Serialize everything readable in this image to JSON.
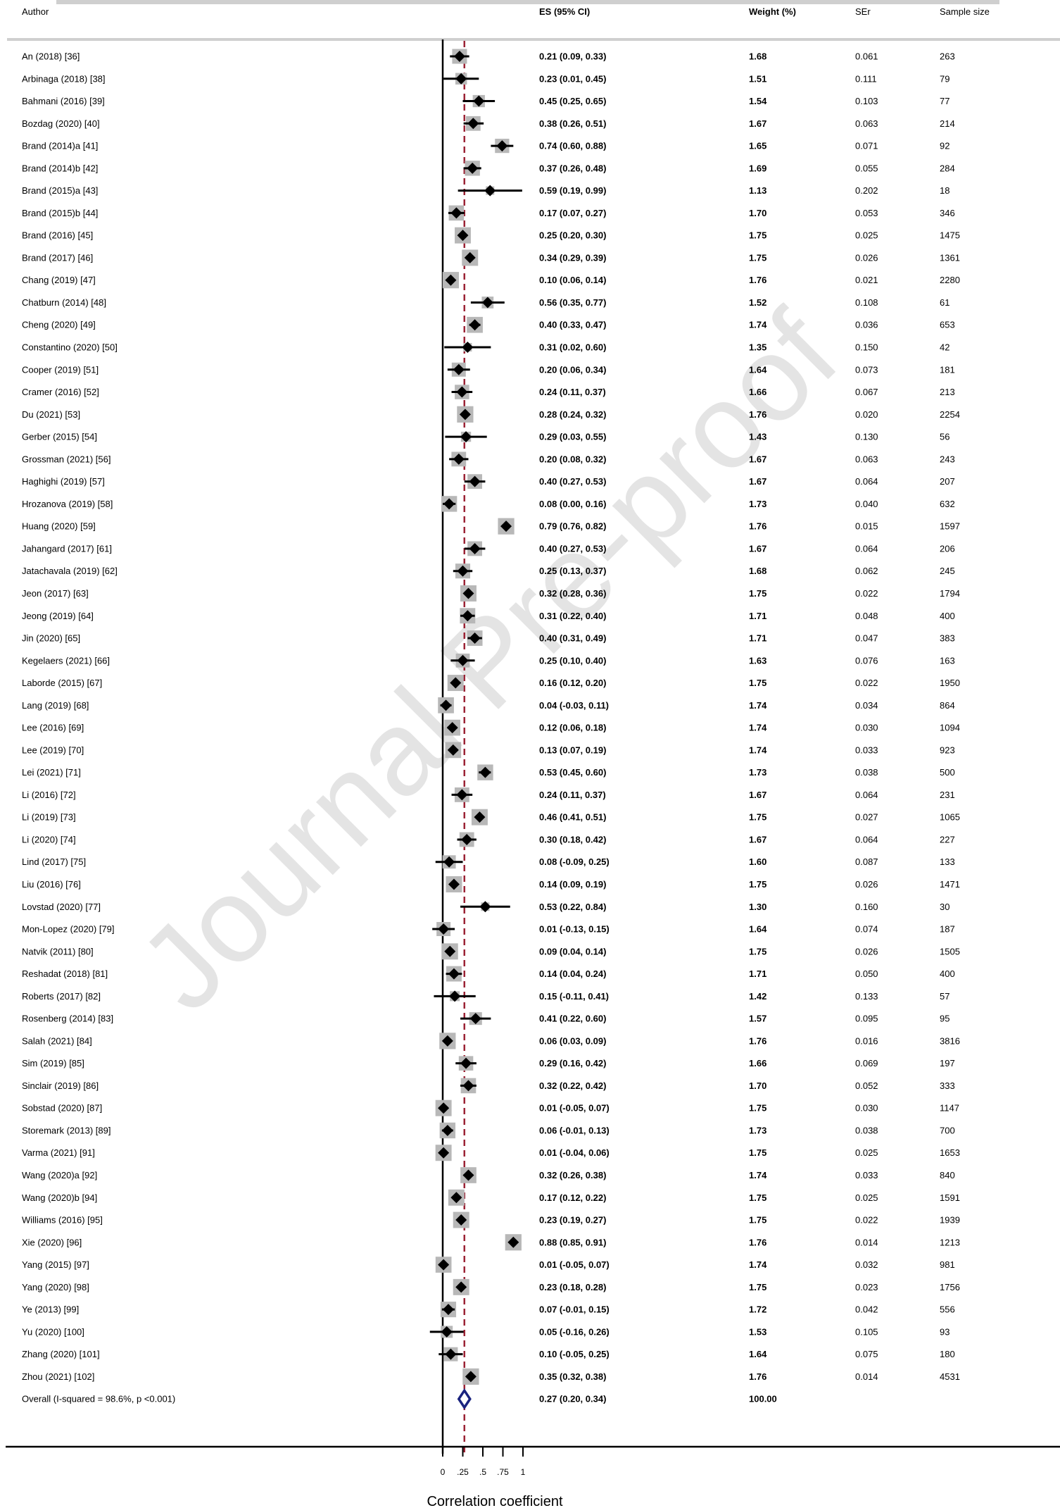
{
  "watermark": "Journal Pre-proof",
  "columns": {
    "author": "Author",
    "es": "ES (95% CI)",
    "weight": "Weight (%)",
    "ser": "SEr",
    "sample": "Sample size"
  },
  "colors": {
    "study_box": "#b8b8b8",
    "marker": "#000000",
    "overall_diamond": "#1a237e",
    "overall_line": "#9b2335",
    "null_line": "#000000"
  },
  "chart_data": {
    "type": "forest",
    "xlabel": "Correlation coefficient",
    "xlim": [
      0,
      1
    ],
    "xticks": [
      0,
      0.25,
      0.5,
      0.75,
      1
    ],
    "xtick_labels": [
      "0",
      ".25",
      ".5",
      ".75",
      "1"
    ],
    "overall_es": 0.27,
    "studies": [
      {
        "author": "An (2018) [36]",
        "es": 0.21,
        "lo": 0.09,
        "hi": 0.33,
        "es_ci": "0.21 (0.09, 0.33)",
        "weight": "1.68",
        "ser": "0.061",
        "n": "263"
      },
      {
        "author": "Arbinaga (2018) [38]",
        "es": 0.23,
        "lo": 0.01,
        "hi": 0.45,
        "es_ci": "0.23 (0.01, 0.45)",
        "weight": "1.51",
        "ser": "0.111",
        "n": "79"
      },
      {
        "author": "Bahmani (2016) [39]",
        "es": 0.45,
        "lo": 0.25,
        "hi": 0.65,
        "es_ci": "0.45 (0.25, 0.65)",
        "weight": "1.54",
        "ser": "0.103",
        "n": "77"
      },
      {
        "author": "Bozdag (2020) [40]",
        "es": 0.38,
        "lo": 0.26,
        "hi": 0.51,
        "es_ci": "0.38 (0.26, 0.51)",
        "weight": "1.67",
        "ser": "0.063",
        "n": "214"
      },
      {
        "author": "Brand (2014)a [41]",
        "es": 0.74,
        "lo": 0.6,
        "hi": 0.88,
        "es_ci": "0.74 (0.60, 0.88)",
        "weight": "1.65",
        "ser": "0.071",
        "n": "92"
      },
      {
        "author": "Brand (2014)b [42]",
        "es": 0.37,
        "lo": 0.26,
        "hi": 0.48,
        "es_ci": "0.37 (0.26, 0.48)",
        "weight": "1.69",
        "ser": "0.055",
        "n": "284"
      },
      {
        "author": "Brand (2015)a [43]",
        "es": 0.59,
        "lo": 0.19,
        "hi": 0.99,
        "es_ci": "0.59 (0.19, 0.99)",
        "weight": "1.13",
        "ser": "0.202",
        "n": "18"
      },
      {
        "author": "Brand (2015)b [44]",
        "es": 0.17,
        "lo": 0.07,
        "hi": 0.27,
        "es_ci": "0.17 (0.07, 0.27)",
        "weight": "1.70",
        "ser": "0.053",
        "n": "346"
      },
      {
        "author": "Brand (2016) [45]",
        "es": 0.25,
        "lo": 0.2,
        "hi": 0.3,
        "es_ci": "0.25 (0.20, 0.30)",
        "weight": "1.75",
        "ser": "0.025",
        "n": "1475"
      },
      {
        "author": "Brand (2017) [46]",
        "es": 0.34,
        "lo": 0.29,
        "hi": 0.39,
        "es_ci": "0.34 (0.29, 0.39)",
        "weight": "1.75",
        "ser": "0.026",
        "n": "1361"
      },
      {
        "author": "Chang (2019) [47]",
        "es": 0.1,
        "lo": 0.06,
        "hi": 0.14,
        "es_ci": "0.10 (0.06, 0.14)",
        "weight": "1.76",
        "ser": "0.021",
        "n": "2280"
      },
      {
        "author": "Chatburn (2014) [48]",
        "es": 0.56,
        "lo": 0.35,
        "hi": 0.77,
        "es_ci": "0.56 (0.35, 0.77)",
        "weight": "1.52",
        "ser": "0.108",
        "n": "61"
      },
      {
        "author": "Cheng (2020) [49]",
        "es": 0.4,
        "lo": 0.33,
        "hi": 0.47,
        "es_ci": "0.40 (0.33, 0.47)",
        "weight": "1.74",
        "ser": "0.036",
        "n": "653"
      },
      {
        "author": "Constantino (2020) [50]",
        "es": 0.31,
        "lo": 0.02,
        "hi": 0.6,
        "es_ci": "0.31 (0.02, 0.60)",
        "weight": "1.35",
        "ser": "0.150",
        "n": "42"
      },
      {
        "author": "Cooper (2019) [51]",
        "es": 0.2,
        "lo": 0.06,
        "hi": 0.34,
        "es_ci": "0.20 (0.06, 0.34)",
        "weight": "1.64",
        "ser": "0.073",
        "n": "181"
      },
      {
        "author": "Cramer (2016) [52]",
        "es": 0.24,
        "lo": 0.11,
        "hi": 0.37,
        "es_ci": "0.24 (0.11, 0.37)",
        "weight": "1.66",
        "ser": "0.067",
        "n": "213"
      },
      {
        "author": "Du (2021) [53]",
        "es": 0.28,
        "lo": 0.24,
        "hi": 0.32,
        "es_ci": "0.28 (0.24, 0.32)",
        "weight": "1.76",
        "ser": "0.020",
        "n": "2254"
      },
      {
        "author": "Gerber (2015) [54]",
        "es": 0.29,
        "lo": 0.03,
        "hi": 0.55,
        "es_ci": "0.29 (0.03, 0.55)",
        "weight": "1.43",
        "ser": "0.130",
        "n": "56"
      },
      {
        "author": "Grossman (2021) [56]",
        "es": 0.2,
        "lo": 0.08,
        "hi": 0.32,
        "es_ci": "0.20 (0.08, 0.32)",
        "weight": "1.67",
        "ser": "0.063",
        "n": "243"
      },
      {
        "author": "Haghighi (2019) [57]",
        "es": 0.4,
        "lo": 0.27,
        "hi": 0.53,
        "es_ci": "0.40 (0.27, 0.53)",
        "weight": "1.67",
        "ser": "0.064",
        "n": "207"
      },
      {
        "author": "Hrozanova (2019) [58]",
        "es": 0.08,
        "lo": 0.0,
        "hi": 0.16,
        "es_ci": "0.08 (0.00, 0.16)",
        "weight": "1.73",
        "ser": "0.040",
        "n": "632"
      },
      {
        "author": "Huang (2020) [59]",
        "es": 0.79,
        "lo": 0.76,
        "hi": 0.82,
        "es_ci": "0.79 (0.76, 0.82)",
        "weight": "1.76",
        "ser": "0.015",
        "n": "1597"
      },
      {
        "author": "Jahangard (2017) [61]",
        "es": 0.4,
        "lo": 0.27,
        "hi": 0.53,
        "es_ci": "0.40 (0.27, 0.53)",
        "weight": "1.67",
        "ser": "0.064",
        "n": "206"
      },
      {
        "author": "Jatachavala (2019) [62]",
        "es": 0.25,
        "lo": 0.13,
        "hi": 0.37,
        "es_ci": "0.25 (0.13, 0.37)",
        "weight": "1.68",
        "ser": "0.062",
        "n": "245"
      },
      {
        "author": "Jeon (2017) [63]",
        "es": 0.32,
        "lo": 0.28,
        "hi": 0.36,
        "es_ci": "0.32 (0.28, 0.36)",
        "weight": "1.75",
        "ser": "0.022",
        "n": "1794"
      },
      {
        "author": "Jeong (2019) [64]",
        "es": 0.31,
        "lo": 0.22,
        "hi": 0.4,
        "es_ci": "0.31 (0.22, 0.40)",
        "weight": "1.71",
        "ser": "0.048",
        "n": "400"
      },
      {
        "author": "Jin (2020) [65]",
        "es": 0.4,
        "lo": 0.31,
        "hi": 0.49,
        "es_ci": "0.40 (0.31, 0.49)",
        "weight": "1.71",
        "ser": "0.047",
        "n": "383"
      },
      {
        "author": "Kegelaers (2021) [66]",
        "es": 0.25,
        "lo": 0.1,
        "hi": 0.4,
        "es_ci": "0.25 (0.10, 0.40)",
        "weight": "1.63",
        "ser": "0.076",
        "n": "163"
      },
      {
        "author": "Laborde (2015) [67]",
        "es": 0.16,
        "lo": 0.12,
        "hi": 0.2,
        "es_ci": "0.16 (0.12, 0.20)",
        "weight": "1.75",
        "ser": "0.022",
        "n": "1950"
      },
      {
        "author": "Lang (2019) [68]",
        "es": 0.04,
        "lo": -0.03,
        "hi": 0.11,
        "es_ci": "0.04 (-0.03, 0.11)",
        "weight": "1.74",
        "ser": "0.034",
        "n": "864"
      },
      {
        "author": "Lee (2016) [69]",
        "es": 0.12,
        "lo": 0.06,
        "hi": 0.18,
        "es_ci": "0.12 (0.06, 0.18)",
        "weight": "1.74",
        "ser": "0.030",
        "n": "1094"
      },
      {
        "author": "Lee (2019) [70]",
        "es": 0.13,
        "lo": 0.07,
        "hi": 0.19,
        "es_ci": "0.13 (0.07, 0.19)",
        "weight": "1.74",
        "ser": "0.033",
        "n": "923"
      },
      {
        "author": "Lei (2021) [71]",
        "es": 0.53,
        "lo": 0.45,
        "hi": 0.6,
        "es_ci": "0.53 (0.45, 0.60)",
        "weight": "1.73",
        "ser": "0.038",
        "n": "500"
      },
      {
        "author": "Li (2016) [72]",
        "es": 0.24,
        "lo": 0.11,
        "hi": 0.37,
        "es_ci": "0.24 (0.11, 0.37)",
        "weight": "1.67",
        "ser": "0.064",
        "n": "231"
      },
      {
        "author": "Li (2019) [73]",
        "es": 0.46,
        "lo": 0.41,
        "hi": 0.51,
        "es_ci": "0.46 (0.41, 0.51)",
        "weight": "1.75",
        "ser": "0.027",
        "n": "1065"
      },
      {
        "author": "Li (2020) [74]",
        "es": 0.3,
        "lo": 0.18,
        "hi": 0.42,
        "es_ci": "0.30 (0.18, 0.42)",
        "weight": "1.67",
        "ser": "0.064",
        "n": "227"
      },
      {
        "author": "Lind (2017) [75]",
        "es": 0.08,
        "lo": -0.09,
        "hi": 0.25,
        "es_ci": "0.08 (-0.09, 0.25)",
        "weight": "1.60",
        "ser": "0.087",
        "n": "133"
      },
      {
        "author": "Liu (2016) [76]",
        "es": 0.14,
        "lo": 0.09,
        "hi": 0.19,
        "es_ci": "0.14 (0.09, 0.19)",
        "weight": "1.75",
        "ser": "0.026",
        "n": "1471"
      },
      {
        "author": "Lovstad (2020) [77]",
        "es": 0.53,
        "lo": 0.22,
        "hi": 0.84,
        "es_ci": "0.53 (0.22, 0.84)",
        "weight": "1.30",
        "ser": "0.160",
        "n": "30"
      },
      {
        "author": "Mon-Lopez (2020) [79]",
        "es": 0.01,
        "lo": -0.13,
        "hi": 0.15,
        "es_ci": "0.01 (-0.13, 0.15)",
        "weight": "1.64",
        "ser": "0.074",
        "n": "187"
      },
      {
        "author": "Natvik (2011) [80]",
        "es": 0.09,
        "lo": 0.04,
        "hi": 0.14,
        "es_ci": "0.09 (0.04, 0.14)",
        "weight": "1.75",
        "ser": "0.026",
        "n": "1505"
      },
      {
        "author": "Reshadat (2018) [81]",
        "es": 0.14,
        "lo": 0.04,
        "hi": 0.24,
        "es_ci": "0.14 (0.04, 0.24)",
        "weight": "1.71",
        "ser": "0.050",
        "n": "400"
      },
      {
        "author": "Roberts (2017) [82]",
        "es": 0.15,
        "lo": -0.11,
        "hi": 0.41,
        "es_ci": "0.15 (-0.11, 0.41)",
        "weight": "1.42",
        "ser": "0.133",
        "n": "57"
      },
      {
        "author": "Rosenberg (2014) [83]",
        "es": 0.41,
        "lo": 0.22,
        "hi": 0.6,
        "es_ci": "0.41 (0.22, 0.60)",
        "weight": "1.57",
        "ser": "0.095",
        "n": "95"
      },
      {
        "author": "Salah (2021) [84]",
        "es": 0.06,
        "lo": 0.03,
        "hi": 0.09,
        "es_ci": "0.06 (0.03, 0.09)",
        "weight": "1.76",
        "ser": "0.016",
        "n": "3816"
      },
      {
        "author": "Sim (2019) [85]",
        "es": 0.29,
        "lo": 0.16,
        "hi": 0.42,
        "es_ci": "0.29 (0.16, 0.42)",
        "weight": "1.66",
        "ser": "0.069",
        "n": "197"
      },
      {
        "author": "Sinclair (2019) [86]",
        "es": 0.32,
        "lo": 0.22,
        "hi": 0.42,
        "es_ci": "0.32 (0.22, 0.42)",
        "weight": "1.70",
        "ser": "0.052",
        "n": "333"
      },
      {
        "author": "Sobstad (2020) [87]",
        "es": 0.01,
        "lo": -0.05,
        "hi": 0.07,
        "es_ci": "0.01 (-0.05, 0.07)",
        "weight": "1.75",
        "ser": "0.030",
        "n": "1147"
      },
      {
        "author": "Storemark (2013) [89]",
        "es": 0.06,
        "lo": -0.01,
        "hi": 0.13,
        "es_ci": "0.06 (-0.01, 0.13)",
        "weight": "1.73",
        "ser": "0.038",
        "n": "700"
      },
      {
        "author": "Varma (2021) [91]",
        "es": 0.01,
        "lo": -0.04,
        "hi": 0.06,
        "es_ci": "0.01 (-0.04, 0.06)",
        "weight": "1.75",
        "ser": "0.025",
        "n": "1653"
      },
      {
        "author": "Wang (2020)a [92]",
        "es": 0.32,
        "lo": 0.26,
        "hi": 0.38,
        "es_ci": "0.32 (0.26, 0.38)",
        "weight": "1.74",
        "ser": "0.033",
        "n": "840"
      },
      {
        "author": "Wang (2020)b [94]",
        "es": 0.17,
        "lo": 0.12,
        "hi": 0.22,
        "es_ci": "0.17 (0.12, 0.22)",
        "weight": "1.75",
        "ser": "0.025",
        "n": "1591"
      },
      {
        "author": "Williams (2016) [95]",
        "es": 0.23,
        "lo": 0.19,
        "hi": 0.27,
        "es_ci": "0.23 (0.19, 0.27)",
        "weight": "1.75",
        "ser": "0.022",
        "n": "1939"
      },
      {
        "author": "Xie (2020) [96]",
        "es": 0.88,
        "lo": 0.85,
        "hi": 0.91,
        "es_ci": "0.88 (0.85, 0.91)",
        "weight": "1.76",
        "ser": "0.014",
        "n": "1213"
      },
      {
        "author": "Yang (2015) [97]",
        "es": 0.01,
        "lo": -0.05,
        "hi": 0.07,
        "es_ci": "0.01 (-0.05, 0.07)",
        "weight": "1.74",
        "ser": "0.032",
        "n": "981"
      },
      {
        "author": "Yang (2020) [98]",
        "es": 0.23,
        "lo": 0.18,
        "hi": 0.28,
        "es_ci": "0.23 (0.18, 0.28)",
        "weight": "1.75",
        "ser": "0.023",
        "n": "1756"
      },
      {
        "author": "Ye (2013) [99]",
        "es": 0.07,
        "lo": -0.01,
        "hi": 0.15,
        "es_ci": "0.07 (-0.01, 0.15)",
        "weight": "1.72",
        "ser": "0.042",
        "n": "556"
      },
      {
        "author": "Yu (2020) [100]",
        "es": 0.05,
        "lo": -0.16,
        "hi": 0.26,
        "es_ci": "0.05 (-0.16, 0.26)",
        "weight": "1.53",
        "ser": "0.105",
        "n": "93"
      },
      {
        "author": "Zhang (2020) [101]",
        "es": 0.1,
        "lo": -0.05,
        "hi": 0.25,
        "es_ci": "0.10 (-0.05, 0.25)",
        "weight": "1.64",
        "ser": "0.075",
        "n": "180"
      },
      {
        "author": "Zhou (2021) [102]",
        "es": 0.35,
        "lo": 0.32,
        "hi": 0.38,
        "es_ci": "0.35 (0.32, 0.38)",
        "weight": "1.76",
        "ser": "0.014",
        "n": "4531"
      }
    ],
    "overall": {
      "label": "Overall  (I-squared = 98.6%, p <0.001)",
      "es": 0.27,
      "lo": 0.2,
      "hi": 0.34,
      "es_ci": "0.27 (0.20, 0.34)",
      "weight": "100.00"
    }
  }
}
